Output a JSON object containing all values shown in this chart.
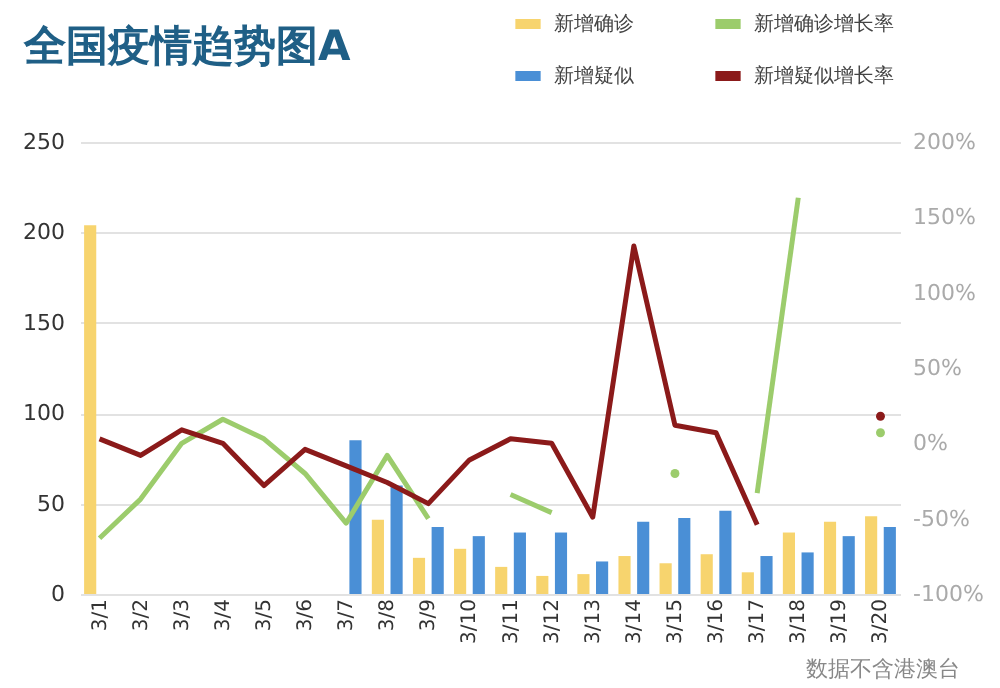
{
  "chart_data": {
    "type": "bar",
    "title": "全国疫情趋势图A",
    "categories": [
      "3/1",
      "3/2",
      "3/3",
      "3/4",
      "3/5",
      "3/6",
      "3/7",
      "3/8",
      "3/9",
      "3/10",
      "3/11",
      "3/12",
      "3/13",
      "3/14",
      "3/15",
      "3/16",
      "3/17",
      "3/18",
      "3/19",
      "3/20"
    ],
    "series": [
      {
        "name": "新增确诊",
        "type": "bar",
        "color": "#f7d46e",
        "values": [
          204,
          null,
          null,
          null,
          null,
          null,
          null,
          41,
          20,
          25,
          15,
          10,
          11,
          21,
          17,
          22,
          12,
          34,
          40,
          43
        ]
      },
      {
        "name": "新增疑似",
        "type": "bar",
        "color": "#4a8fd6",
        "values": [
          null,
          null,
          null,
          null,
          null,
          null,
          85,
          60,
          37,
          32,
          34,
          34,
          18,
          40,
          42,
          46,
          21,
          23,
          32,
          37
        ]
      },
      {
        "name": "新增确诊增长率",
        "type": "line",
        "axis": "y2",
        "color": "#9ccc6c",
        "values": [
          -63,
          -37,
          0,
          16,
          3,
          -20,
          -53,
          -8,
          -50,
          null,
          -34,
          -46,
          null,
          null,
          -20,
          null,
          -33,
          163,
          null,
          7
        ]
      },
      {
        "name": "新增疑似增长率",
        "type": "line",
        "axis": "y2",
        "color": "#8b1a1a",
        "values": [
          3,
          -8,
          9,
          0,
          -28,
          -4,
          -15,
          -26,
          -40,
          -11,
          3,
          0,
          -49,
          131,
          12,
          7,
          -54,
          null,
          null,
          18
        ]
      }
    ],
    "ylim": [
      0,
      250
    ],
    "yticks": [
      0,
      50,
      100,
      150,
      200,
      250
    ],
    "y2lim": [
      -100,
      200
    ],
    "y2ticks": [
      {
        "value": -100,
        "label": "-100%"
      },
      {
        "value": -50,
        "label": "-50%"
      },
      {
        "value": 0,
        "label": "0%"
      },
      {
        "value": 50,
        "label": "50%"
      },
      {
        "value": 100,
        "label": "100%"
      },
      {
        "value": 150,
        "label": "150%"
      },
      {
        "value": 200,
        "label": "200%"
      }
    ],
    "grid": "y",
    "legend": "top right",
    "marker": "none",
    "line_style": "solid",
    "annotations": [
      "数据不含港澳台"
    ]
  }
}
